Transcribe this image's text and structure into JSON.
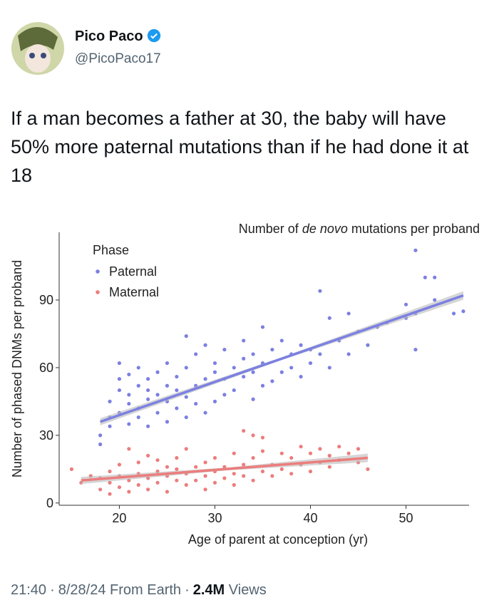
{
  "header": {
    "name": "Pico Paco",
    "handle": "@PicoPaco17"
  },
  "tweet": {
    "text": "If a man becomes a father at 30, the baby will have 50% more paternal mutations than if he had done it at 18"
  },
  "footer": {
    "time": "21:40",
    "date": "8/28/24",
    "source": "From Earth",
    "views": "2.4M",
    "views_label": "Views"
  },
  "chart_data": {
    "type": "scatter",
    "title_parts": [
      "Number of ",
      "de novo",
      " mutations per proband"
    ],
    "x_label": "Age of parent at conception (yr)",
    "y_label": "Number of phased DNMs per proband",
    "legend_title": "Phase",
    "xlim": [
      13.7,
      56.6
    ],
    "xticks": [
      20,
      30,
      40,
      50
    ],
    "ylim": [
      -1,
      120
    ],
    "yticks": [
      0,
      30,
      60,
      90
    ],
    "series": [
      {
        "name": "Paternal",
        "color": "#7b80e2",
        "x": [
          18,
          18,
          19,
          19,
          19,
          20,
          20,
          20,
          20,
          21,
          21,
          21,
          21,
          22,
          22,
          22,
          22,
          23,
          23,
          23,
          23,
          24,
          24,
          24,
          25,
          25,
          25,
          25,
          26,
          26,
          26,
          27,
          27,
          27,
          27,
          28,
          28,
          28,
          29,
          29,
          29,
          30,
          30,
          30,
          31,
          31,
          31,
          32,
          32,
          33,
          33,
          33,
          34,
          34,
          34,
          35,
          35,
          35,
          36,
          36,
          37,
          37,
          38,
          38,
          39,
          39,
          40,
          40,
          41,
          41,
          42,
          42,
          43,
          44,
          44,
          45,
          46,
          47,
          48,
          50,
          51,
          51,
          52,
          53,
          53,
          55,
          56,
          51,
          50
        ],
        "values": [
          26,
          30,
          34,
          38,
          45,
          40,
          50,
          55,
          62,
          35,
          44,
          48,
          57,
          38,
          42,
          52,
          60,
          34,
          46,
          50,
          55,
          40,
          48,
          58,
          36,
          45,
          52,
          62,
          42,
          50,
          56,
          38,
          47,
          60,
          74,
          44,
          52,
          66,
          40,
          55,
          70,
          45,
          58,
          62,
          48,
          55,
          68,
          50,
          60,
          56,
          64,
          72,
          46,
          58,
          66,
          52,
          62,
          78,
          54,
          68,
          58,
          72,
          60,
          66,
          56,
          70,
          62,
          68,
          66,
          94,
          60,
          82,
          72,
          66,
          84,
          76,
          70,
          78,
          80,
          88,
          84,
          112,
          100,
          100,
          90,
          84,
          85,
          68,
          82
        ],
        "fit": {
          "x": [
            18,
            56
          ],
          "y": [
            36,
            92
          ]
        }
      },
      {
        "name": "Maternal",
        "color": "#ec7d7d",
        "x": [
          15,
          16,
          17,
          18,
          18,
          19,
          19,
          19,
          20,
          20,
          20,
          21,
          21,
          21,
          22,
          22,
          22,
          23,
          23,
          23,
          24,
          24,
          24,
          25,
          25,
          25,
          26,
          26,
          26,
          27,
          27,
          27,
          28,
          28,
          29,
          29,
          29,
          30,
          30,
          30,
          31,
          31,
          32,
          32,
          32,
          33,
          33,
          33,
          34,
          34,
          34,
          35,
          35,
          35,
          36,
          36,
          37,
          37,
          38,
          38,
          39,
          39,
          40,
          40,
          41,
          41,
          42,
          42,
          43,
          43,
          44,
          45,
          45,
          46
        ],
        "values": [
          15,
          9,
          12,
          6,
          11,
          4,
          9,
          14,
          7,
          12,
          17,
          5,
          10,
          24,
          8,
          13,
          18,
          6,
          11,
          21,
          9,
          14,
          19,
          5,
          12,
          16,
          10,
          15,
          20,
          8,
          13,
          24,
          10,
          16,
          6,
          12,
          18,
          9,
          14,
          20,
          11,
          16,
          8,
          13,
          22,
          12,
          17,
          32,
          10,
          20,
          30,
          14,
          23,
          29,
          12,
          17,
          15,
          22,
          13,
          20,
          17,
          25,
          14,
          22,
          18,
          24,
          16,
          21,
          19,
          25,
          22,
          18,
          24,
          15
        ],
        "fit": {
          "x": [
            16,
            46
          ],
          "y": [
            10,
            20
          ]
        }
      }
    ]
  }
}
